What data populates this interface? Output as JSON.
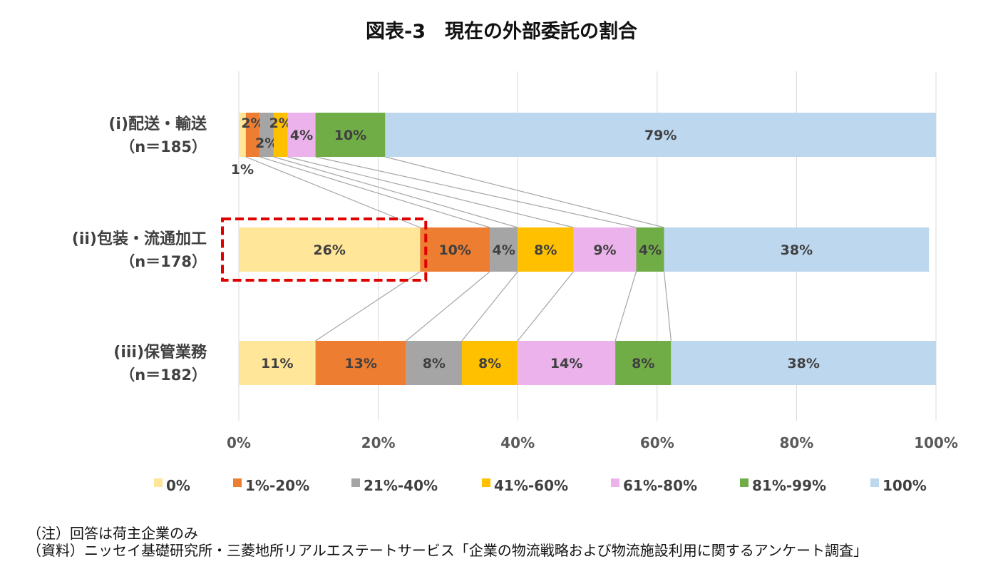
{
  "chart_data": {
    "type": "bar",
    "orientation": "horizontal",
    "stacked": "100%",
    "title": "図表-3　現在の外部委託の割合",
    "categories": [
      {
        "name": "(i)配送・輸送",
        "n": "（n＝185）"
      },
      {
        "name": "(ii)包装・流通加工",
        "n": "（n＝178）"
      },
      {
        "name": "(iii)保管業務",
        "n": "（n＝182）"
      }
    ],
    "series": [
      {
        "name": "0%",
        "color": "#FFE699",
        "values": [
          1,
          26,
          11
        ]
      },
      {
        "name": "1%-20%",
        "color": "#ED7D31",
        "values": [
          2,
          10,
          13
        ]
      },
      {
        "name": "21%-40%",
        "color": "#A5A5A5",
        "values": [
          2,
          4,
          8
        ]
      },
      {
        "name": "41%-60%",
        "color": "#FFC000",
        "values": [
          2,
          8,
          8
        ]
      },
      {
        "name": "61%-80%",
        "color": "#EBB2EB",
        "values": [
          4,
          9,
          14
        ]
      },
      {
        "name": "81%-99%",
        "color": "#70AD47",
        "values": [
          10,
          4,
          8
        ]
      },
      {
        "name": "100%",
        "color": "#BDD7EE",
        "values": [
          79,
          38,
          38
        ]
      }
    ],
    "xlim": [
      0,
      100
    ],
    "xticks": [
      "0%",
      "20%",
      "40%",
      "60%",
      "80%",
      "100%"
    ],
    "grid": true,
    "legend_position": "bottom",
    "highlight": {
      "category": "(ii)包装・流通加工",
      "series": "0%",
      "color": "#E00000",
      "style": "dashed"
    }
  },
  "notes": {
    "note1": "（注）回答は荷主企業のみ",
    "note2": "（資料）ニッセイ基礎研究所・三菱地所リアルエステートサービス「企業の物流戦略および物流施設利用に関するアンケート調査」"
  }
}
